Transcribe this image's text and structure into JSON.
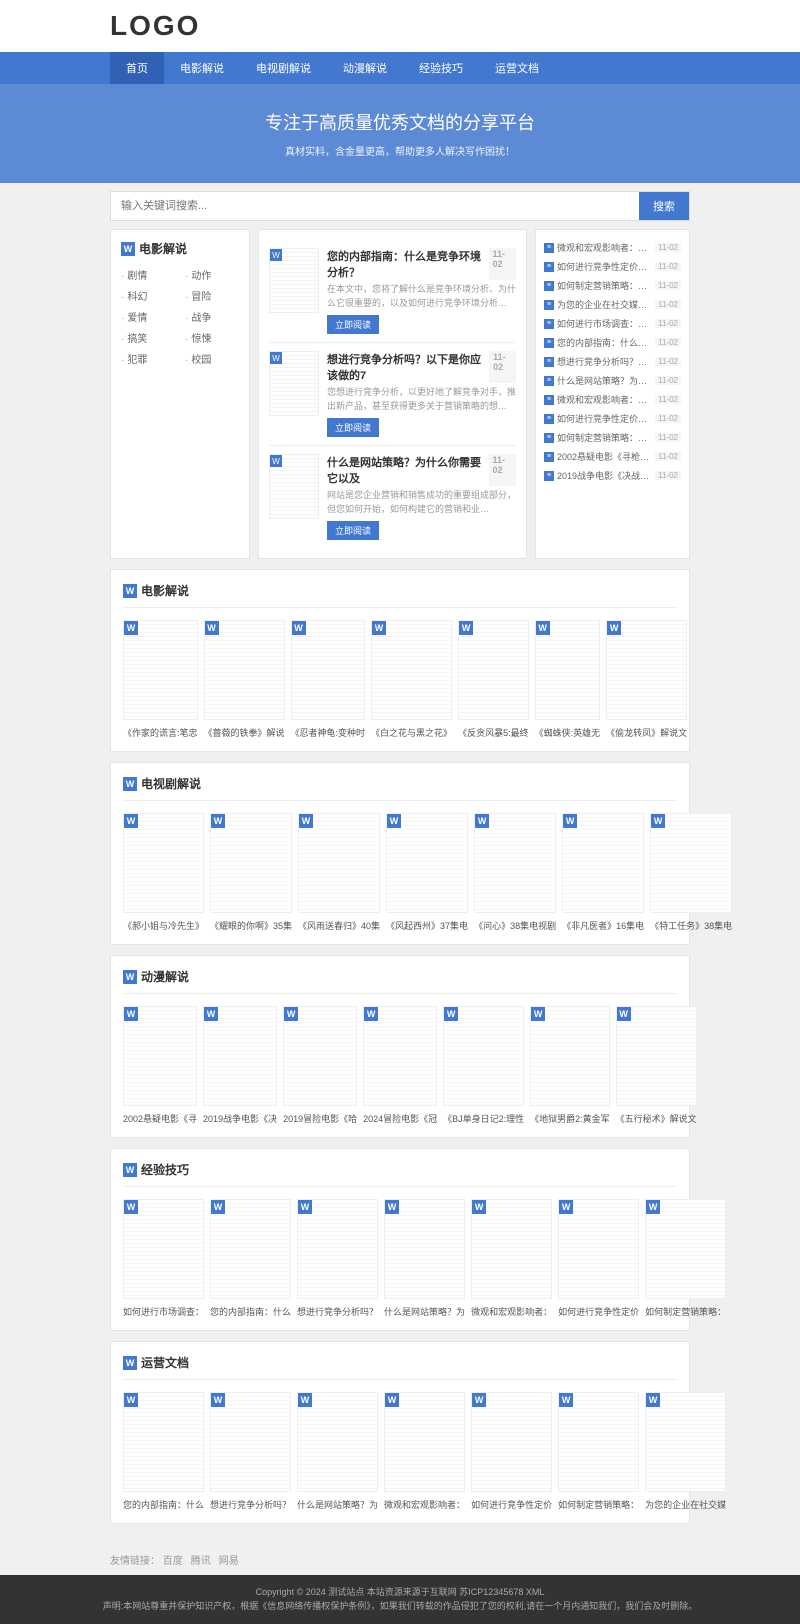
{
  "logo_text": "LOGO",
  "nav": [
    "首页",
    "电影解说",
    "电视剧解说",
    "动漫解说",
    "经验技巧",
    "运营文档"
  ],
  "banner": {
    "title": "专注于高质量优秀文档的分享平台",
    "subtitle": "真材实料，含金量更高，帮助更多人解决写作困扰！"
  },
  "search": {
    "placeholder": "输入关键词搜索...",
    "button": "搜索"
  },
  "cat_panel": {
    "title": "电影解说",
    "items": [
      "剧情",
      "动作",
      "科幻",
      "冒险",
      "爱情",
      "战争",
      "搞笑",
      "惊悚",
      "犯罪",
      "校园"
    ]
  },
  "articles": [
    {
      "title": "您的内部指南：什么是竞争环境分析？",
      "date": "11-02",
      "desc": "在本文中，您将了解什么是竞争环境分析、为什么它很重要的，以及如何进行竞争环境分析…",
      "btn": "立即阅读"
    },
    {
      "title": "想进行竞争分析吗？以下是你应该做的7",
      "date": "11-02",
      "desc": "您想进行竞争分析，以更好地了解竞争对手，推出新产品，甚至获得更多关于营销策略的想…",
      "btn": "立即阅读"
    },
    {
      "title": "什么是网站策略？为什么你需要它以及",
      "date": "11-02",
      "desc": "网站是您企业营销和销售成功的重要组成部分，但您如何开始，如何构建它的营销和业…",
      "btn": "立即阅读"
    }
  ],
  "side_list": [
    {
      "text": "微观和宏观影响者：如何工作",
      "date": "11-02"
    },
    {
      "text": "如何进行竞争性定价分析",
      "date": "11-02"
    },
    {
      "text": "如何制定营销策略：你需要知道",
      "date": "11-02"
    },
    {
      "text": "为您的企业在社交媒体上发布什",
      "date": "11-02"
    },
    {
      "text": "如何进行市场调查：你真正需要",
      "date": "11-02"
    },
    {
      "text": "您的内部指南：什么是竞争环境",
      "date": "11-02"
    },
    {
      "text": "想进行竞争分析吗？以下是您应",
      "date": "11-02"
    },
    {
      "text": "什么是网站策略？为什么你需要",
      "date": "11-02"
    },
    {
      "text": "微观和宏观影响者：如何工作",
      "date": "11-02"
    },
    {
      "text": "如何进行竞争性定价分析",
      "date": "11-02"
    },
    {
      "text": "如何制定营销策略：你需要知道",
      "date": "11-02"
    },
    {
      "text": "2002悬疑电影《寻枪》解说文",
      "date": "11-02"
    },
    {
      "text": "2019战争电影《决战中途岛》",
      "date": "11-02"
    }
  ],
  "sections": [
    {
      "title": "电影解说",
      "cards": [
        "《作家的谎言:笔忠",
        "《蔷薇的铁拳》解说",
        "《忍者神龟:变种时",
        "《白之花与黑之花》",
        "《反贪风暴5:最终",
        "《蜘蛛侠:英雄无",
        "《偷龙转凤》解说文"
      ]
    },
    {
      "title": "电视剧解说",
      "cards": [
        "《郝小姐与冷先生》",
        "《耀眼的你啊》35集",
        "《风雨送春归》40集",
        "《风起西州》37集电",
        "《问心》38集电视剧",
        "《非凡医者》16集电",
        "《特工任务》38集电"
      ]
    },
    {
      "title": "动漫解说",
      "cards": [
        "2002悬疑电影《寻",
        "2019战争电影《决",
        "2019冒险电影《哈",
        "2024冒险电影《冠",
        "《BJ单身日记2:理性",
        "《地狱男爵2:黄金军",
        "《五行秘术》解说文"
      ]
    },
    {
      "title": "经验技巧",
      "cards": [
        "如何进行市场调查：",
        "您的内部指南：什么",
        "想进行竞争分析吗？",
        "什么是网站策略？为",
        "微观和宏观影响者：",
        "如何进行竞争性定价",
        "如何制定营销策略："
      ]
    },
    {
      "title": "运营文档",
      "cards": [
        "您的内部指南：什么",
        "想进行竞争分析吗？",
        "什么是网站策略？为",
        "微观和宏观影响者：",
        "如何进行竞争性定价",
        "如何制定营销策略：",
        "为您的企业在社交媒"
      ]
    }
  ],
  "friend_links": {
    "label": "友情链接：",
    "links": [
      "百度",
      "腾讯",
      "网易"
    ]
  },
  "footer": {
    "line1": "Copyright © 2024 测试站点 本站资源来源于互联网 苏ICP12345678 XML",
    "line2": "声明:本网站尊重并保护知识产权，根据《信息网络传播权保护条例》，如果我们转载的作品侵犯了您的权利,请在一个月内通知我们，我们会及时删除。"
  },
  "colors": {
    "primary": "#4378d0",
    "nav_active": "#3161b5",
    "bg": "#f0f0f0",
    "border": "#e5e5e5"
  }
}
